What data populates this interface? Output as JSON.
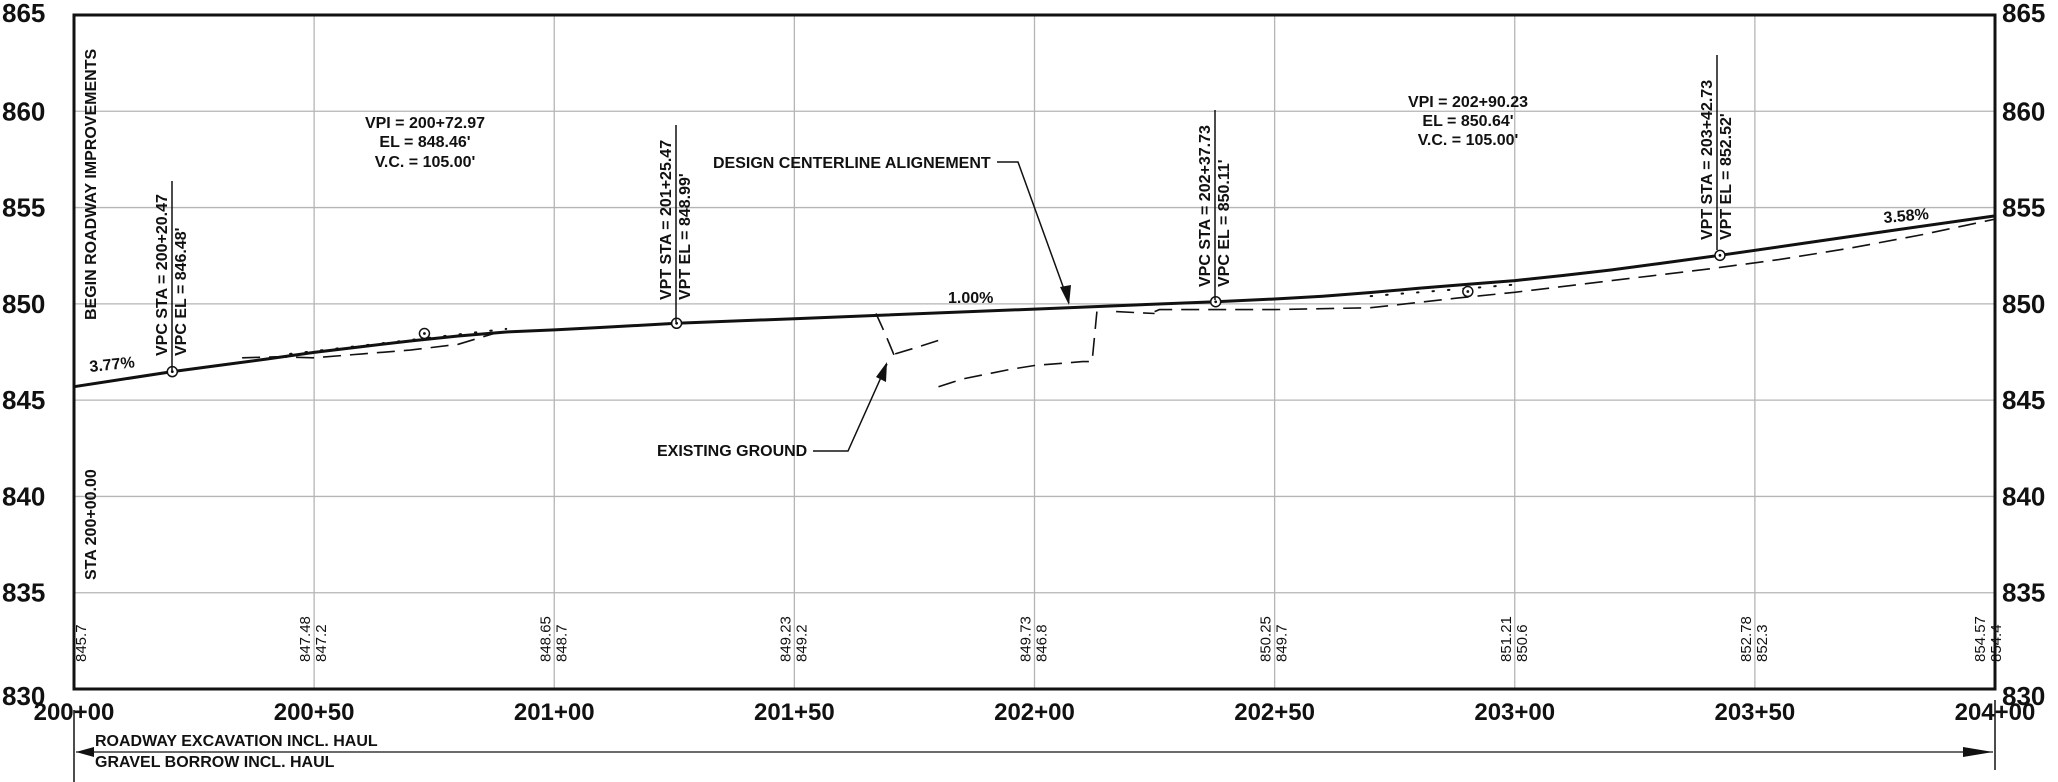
{
  "chart_data": {
    "type": "line",
    "title": "",
    "xlabel": "",
    "ylabel": "",
    "xlim": [
      20000,
      20400
    ],
    "ylim": [
      830,
      865
    ],
    "grid": true,
    "y_ticks": [
      "830",
      "835",
      "840",
      "845",
      "850",
      "855",
      "860",
      "865"
    ],
    "x_ticks": [
      "200+00",
      "200+50",
      "201+00",
      "201+50",
      "202+00",
      "202+50",
      "203+00",
      "203+50",
      "204+00"
    ],
    "series": [
      {
        "name": "DESIGN CENTERLINE ALIGNEMENT",
        "style": "solid",
        "x": [
          20000,
          20020.47,
          20030,
          20040,
          20050,
          20060,
          20070,
          20080,
          20090,
          20100,
          20110,
          20125.47,
          20150,
          20200,
          20237.73,
          20250,
          20260,
          20270,
          20280,
          20290,
          20300,
          20310,
          20320,
          20330,
          20342.73,
          20360,
          20380,
          20400
        ],
        "y": [
          845.7,
          846.48,
          846.8,
          847.13,
          847.48,
          847.78,
          848.07,
          848.33,
          848.54,
          848.65,
          848.78,
          848.99,
          849.23,
          849.73,
          850.11,
          850.25,
          850.4,
          850.59,
          850.81,
          851.01,
          851.21,
          851.47,
          851.76,
          852.09,
          852.52,
          853.14,
          853.86,
          854.57
        ]
      },
      {
        "name": "EXISTING GROUND",
        "style": "dashed",
        "segments": [
          {
            "x": [
              20035,
              20042,
              20050,
              20060,
              20070,
              20080,
              20088
            ],
            "y": [
              847.2,
              847.25,
              847.2,
              847.4,
              847.6,
              847.9,
              848.5
            ]
          },
          {
            "x": [
              20167,
              20169,
              20171
            ],
            "y": [
              849.5,
              848.4,
              847.2
            ]
          },
          {
            "x": [
              20171,
              20175,
              20180
            ],
            "y": [
              847.4,
              847.7,
              848.1
            ]
          },
          {
            "x": [
              20180,
              20185,
              20195,
              20200,
              20210,
              20212,
              20213
            ],
            "y": [
              845.7,
              846.1,
              846.6,
              846.8,
              847.0,
              847.0,
              849.6
            ]
          },
          {
            "x": [
              20217,
              20225
            ],
            "y": [
              849.6,
              849.5
            ]
          },
          {
            "x": [
              20225,
              20226,
              20240,
              20250,
              20270,
              20288,
              20300,
              20320,
              20340,
              20355,
              20370,
              20385,
              20400
            ],
            "y": [
              849.6,
              849.7,
              849.7,
              849.7,
              849.8,
              850.3,
              850.6,
              851.2,
              851.8,
              852.3,
              852.9,
              853.6,
              854.4
            ]
          }
        ]
      }
    ],
    "station_labels": [
      {
        "x": 20000,
        "design": "",
        "existing": "845.7"
      },
      {
        "x": 20050,
        "design": "847.48",
        "existing": "847.2"
      },
      {
        "x": 20100,
        "design": "848.65",
        "existing": "848.7"
      },
      {
        "x": 20150,
        "design": "849.23",
        "existing": "849.2"
      },
      {
        "x": 20200,
        "design": "849.73",
        "existing": "846.8"
      },
      {
        "x": 20250,
        "design": "850.25",
        "existing": "849.7"
      },
      {
        "x": 20300,
        "design": "851.21",
        "existing": "850.6"
      },
      {
        "x": 20350,
        "design": "852.78",
        "existing": "852.3"
      },
      {
        "x": 20400,
        "design": "854.57",
        "existing": "854.4"
      }
    ],
    "points_of_interest": [
      {
        "name": "VPC",
        "x": 20020.47,
        "y": 846.48
      },
      {
        "name": "VPI",
        "x": 20072.97,
        "y": 848.46
      },
      {
        "name": "VPT",
        "x": 20125.47,
        "y": 848.99
      },
      {
        "name": "VPC",
        "x": 20237.73,
        "y": 850.11
      },
      {
        "name": "VPI",
        "x": 20290.23,
        "y": 850.64
      },
      {
        "name": "VPT",
        "x": 20342.73,
        "y": 852.52
      }
    ],
    "annotations": {
      "begin": "BEGIN ROADWAY IMPROVEMENTS",
      "sta_start": "STA 200+00.00",
      "vpc1_sta": "VPC STA = 200+20.47",
      "vpc1_el": "VPC EL = 846.48'",
      "vpi1": [
        "VPI = 200+72.97",
        "EL = 848.46'",
        "V.C. = 105.00'"
      ],
      "vpt1_sta": "VPT STA = 201+25.47",
      "vpt1_el": "VPT EL = 848.99'",
      "centerline": "DESIGN CENTERLINE ALIGNEMENT",
      "existing": "EXISTING GROUND",
      "grade_mid": "1.00%",
      "grade_left": "3.77%",
      "grade_right": "3.58%",
      "vpc2_sta": "VPC STA = 202+37.73",
      "vpc2_el": "VPC EL = 850.11'",
      "vpi2": [
        "VPI = 202+90.23",
        "EL = 850.64'",
        "V.C. = 105.00'"
      ],
      "vpt2_sta": "VPT STA = 203+42.73",
      "vpt2_el": "VPT EL = 852.52'"
    },
    "haul": {
      "line1": "ROADWAY EXCAVATION INCL. HAUL",
      "line2": "GRAVEL BORROW INCL. HAUL"
    }
  }
}
